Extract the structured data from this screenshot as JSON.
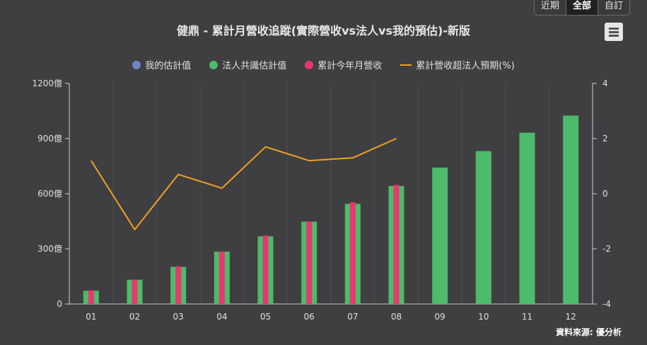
{
  "tabs": [
    {
      "label": "近期",
      "active": false
    },
    {
      "label": "全部",
      "active": true
    },
    {
      "label": "自訂",
      "active": false
    }
  ],
  "source": "資料來源: 優分析",
  "colors": {
    "my_estimate": "#6f86c6",
    "consensus": "#4cbb6a",
    "revenue": "#e8386f",
    "beat": "#f0a020"
  },
  "chart_data": {
    "type": "bar",
    "title": "健鼎 - 累計月營收追蹤(實際營收vs法人vs我的預估)-新版",
    "categories": [
      "01",
      "02",
      "03",
      "04",
      "05",
      "06",
      "07",
      "08",
      "09",
      "10",
      "11",
      "12"
    ],
    "legend": [
      {
        "name": "我的估計值",
        "marker": "dot",
        "color": "#6f86c6"
      },
      {
        "name": "法人共識估計值",
        "marker": "dot",
        "color": "#4cbb6a"
      },
      {
        "name": "累計今年月營收",
        "marker": "dot",
        "color": "#e8386f"
      },
      {
        "name": "累計營收超法人預期(%)",
        "marker": "line",
        "color": "#f0a020"
      }
    ],
    "series": [
      {
        "name": "法人共識估計值",
        "type": "bar",
        "axis": "left",
        "values": [
          72,
          132,
          202,
          285,
          368,
          448,
          545,
          642,
          742,
          832,
          932,
          1025
        ]
      },
      {
        "name": "累計今年月營收",
        "type": "bar",
        "axis": "left",
        "values": [
          74,
          131,
          205,
          284,
          372,
          449,
          553,
          648,
          null,
          null,
          null,
          null
        ]
      },
      {
        "name": "累計營收超法人預期(%)",
        "type": "line",
        "axis": "right",
        "values": [
          1.2,
          -1.3,
          0.7,
          0.2,
          1.7,
          1.2,
          1.3,
          2.0,
          null,
          null,
          null,
          null
        ]
      }
    ],
    "y_left": {
      "min": 0,
      "max": 1200,
      "ticks": [
        "0",
        "300億",
        "600億",
        "900億",
        "1200億"
      ]
    },
    "y_right": {
      "min": -4,
      "max": 4,
      "ticks": [
        "-4",
        "-2",
        "0",
        "2",
        "4"
      ]
    },
    "grid": "vertical"
  }
}
